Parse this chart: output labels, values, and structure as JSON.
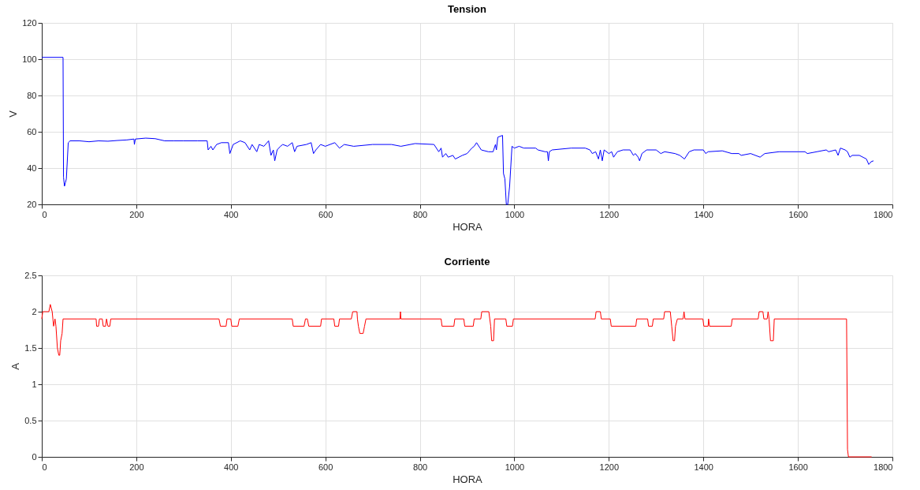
{
  "chart_data": [
    {
      "type": "line",
      "title": "Tension",
      "xlabel": "HORA",
      "ylabel": "V",
      "xlim": [
        0,
        1800
      ],
      "ylim": [
        20,
        120
      ],
      "xticks": [
        0,
        200,
        400,
        600,
        800,
        1000,
        1200,
        1400,
        1600,
        1800
      ],
      "yticks": [
        20,
        40,
        60,
        80,
        100,
        120
      ],
      "grid": true,
      "series": [
        {
          "color": "#0000ff",
          "x": [
            0,
            45,
            46,
            48,
            50,
            52,
            56,
            60,
            80,
            100,
            120,
            140,
            160,
            180,
            195,
            196,
            198,
            220,
            240,
            260,
            280,
            300,
            330,
            350,
            352,
            358,
            362,
            370,
            380,
            395,
            398,
            405,
            420,
            430,
            440,
            445,
            455,
            460,
            470,
            480,
            485,
            490,
            493,
            498,
            505,
            510,
            520,
            530,
            535,
            540,
            560,
            570,
            575,
            580,
            590,
            600,
            620,
            630,
            640,
            660,
            700,
            740,
            760,
            790,
            830,
            840,
            845,
            848,
            855,
            860,
            870,
            875,
            890,
            900,
            910,
            915,
            920,
            930,
            945,
            955,
            960,
            962,
            965,
            975,
            977,
            980,
            983,
            986,
            990,
            995,
            1000,
            1010,
            1020,
            1045,
            1050,
            1065,
            1070,
            1072,
            1074,
            1080,
            1120,
            1150,
            1160,
            1165,
            1172,
            1178,
            1182,
            1186,
            1190,
            1200,
            1206,
            1210,
            1218,
            1230,
            1245,
            1252,
            1256,
            1262,
            1265,
            1270,
            1280,
            1300,
            1310,
            1318,
            1340,
            1350,
            1360,
            1370,
            1380,
            1400,
            1405,
            1410,
            1440,
            1460,
            1475,
            1480,
            1500,
            1520,
            1530,
            1560,
            1600,
            1615,
            1620,
            1640,
            1660,
            1665,
            1680,
            1685,
            1690,
            1700,
            1705,
            1710,
            1715,
            1730,
            1745,
            1750,
            1755,
            1760
          ],
          "values": [
            101,
            101,
            35,
            30,
            32,
            34,
            54,
            55,
            55,
            54.5,
            55,
            54.8,
            55.2,
            55.5,
            56,
            53,
            56,
            56.5,
            56.2,
            55,
            55,
            55,
            55,
            55,
            50,
            52,
            50,
            53,
            54,
            54,
            48,
            53,
            55,
            54,
            50,
            53,
            49,
            53,
            52,
            55,
            47,
            50,
            44,
            50,
            52,
            53,
            52,
            54,
            49,
            52,
            53,
            54,
            48,
            50,
            53,
            52,
            54,
            51,
            53,
            52,
            53,
            53,
            52,
            53.5,
            53,
            49,
            51,
            46,
            48,
            46,
            47,
            45,
            47,
            48,
            51,
            52,
            54,
            50,
            49,
            49,
            53,
            50,
            57,
            58,
            37,
            34,
            20,
            20,
            30,
            52,
            51,
            52,
            51,
            51,
            50,
            49,
            49,
            44,
            49,
            50,
            51,
            51,
            50,
            48,
            49,
            45,
            50,
            44,
            50,
            48,
            49,
            46,
            49,
            50,
            50,
            47,
            48,
            46,
            44,
            48,
            50,
            50,
            48,
            49,
            48,
            47,
            45,
            49,
            50,
            50,
            48,
            49,
            49.5,
            48,
            48,
            47,
            48,
            46,
            48,
            49,
            49,
            49,
            48,
            49,
            50,
            49,
            50,
            47,
            51,
            50,
            49,
            46,
            47,
            47,
            45,
            42,
            43.5,
            44
          ]
        }
      ]
    },
    {
      "type": "line",
      "title": "Corriente",
      "xlabel": "HORA",
      "ylabel": "A",
      "xlim": [
        0,
        1800
      ],
      "ylim": [
        0,
        2.5
      ],
      "xticks": [
        0,
        200,
        400,
        600,
        800,
        1000,
        1200,
        1400,
        1600,
        1800
      ],
      "yticks": [
        0,
        0.5,
        1,
        1.5,
        2,
        2.5
      ],
      "grid": true,
      "series": [
        {
          "color": "#ff0000",
          "x": [
            0,
            2,
            15,
            18,
            22,
            25,
            28,
            30,
            33,
            36,
            38,
            40,
            43,
            45,
            115,
            116,
            120,
            122,
            128,
            130,
            135,
            137,
            140,
            144,
            146,
            375,
            378,
            390,
            392,
            400,
            402,
            415,
            418,
            530,
            532,
            555,
            558,
            562,
            565,
            590,
            592,
            618,
            620,
            628,
            630,
            655,
            658,
            667,
            668,
            670,
            673,
            680,
            683,
            686,
            758,
            759,
            760,
            845,
            847,
            872,
            874,
            893,
            895,
            913,
            915,
            929,
            931,
            946,
            950,
            952,
            956,
            958,
            982,
            984,
            996,
            998,
            1171,
            1173,
            1182,
            1184,
            1203,
            1205,
            1257,
            1259,
            1282,
            1284,
            1292,
            1294,
            1316,
            1318,
            1330,
            1333,
            1336,
            1339,
            1341,
            1345,
            1357,
            1359,
            1361,
            1399,
            1401,
            1410,
            1411,
            1413,
            1459,
            1461,
            1516,
            1518,
            1526,
            1528,
            1535,
            1537,
            1539,
            1542,
            1548,
            1550,
            1703,
            1705,
            1707,
            1756
          ],
          "values": [
            1.9,
            2.0,
            2.0,
            2.1,
            2.0,
            1.8,
            1.9,
            1.8,
            1.5,
            1.4,
            1.4,
            1.6,
            1.7,
            1.9,
            1.9,
            1.8,
            1.8,
            1.9,
            1.9,
            1.8,
            1.8,
            1.9,
            1.8,
            1.8,
            1.9,
            1.9,
            1.8,
            1.8,
            1.9,
            1.9,
            1.8,
            1.8,
            1.9,
            1.9,
            1.8,
            1.8,
            1.9,
            1.9,
            1.8,
            1.8,
            1.9,
            1.9,
            1.8,
            1.8,
            1.9,
            1.9,
            2.0,
            2.0,
            1.9,
            1.8,
            1.7,
            1.7,
            1.8,
            1.9,
            1.9,
            2.0,
            1.9,
            1.9,
            1.8,
            1.8,
            1.9,
            1.9,
            1.8,
            1.8,
            1.9,
            1.9,
            2.0,
            2.0,
            1.8,
            1.6,
            1.6,
            1.9,
            1.9,
            1.8,
            1.8,
            1.9,
            1.9,
            2.0,
            2.0,
            1.9,
            1.9,
            1.8,
            1.8,
            1.9,
            1.9,
            1.8,
            1.8,
            1.9,
            1.9,
            2.0,
            2.0,
            1.8,
            1.6,
            1.6,
            1.8,
            1.9,
            1.9,
            2.0,
            1.9,
            1.9,
            1.8,
            1.8,
            1.9,
            1.8,
            1.8,
            1.9,
            1.9,
            2.0,
            2.0,
            1.9,
            1.9,
            2.0,
            1.9,
            1.6,
            1.6,
            1.9,
            1.9,
            0.1,
            0,
            0
          ]
        }
      ]
    }
  ]
}
